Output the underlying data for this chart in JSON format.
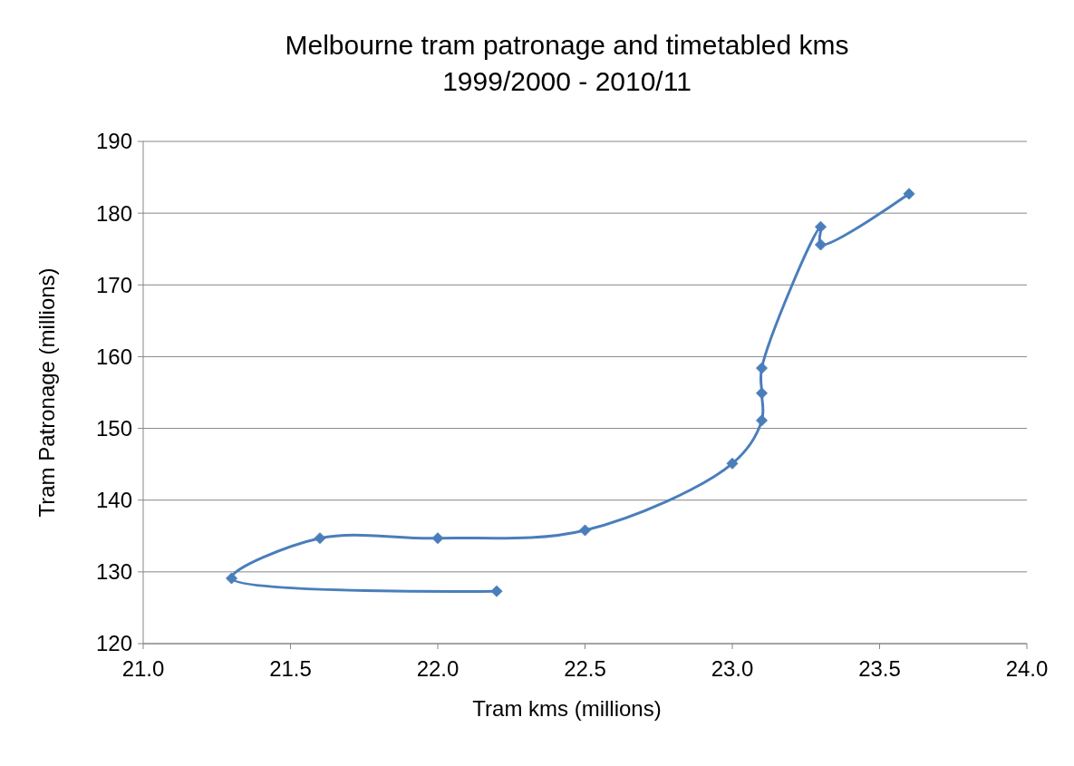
{
  "chart_data": {
    "type": "line",
    "title": "Melbourne tram patronage and timetabled kms",
    "subtitle": "1999/2000 - 2010/11",
    "xlabel": "Tram kms (millions)",
    "ylabel": "Tram Patronage  (millions)",
    "series": [
      {
        "color": "#4a7ebb",
        "x": [
          22.2,
          21.3,
          21.6,
          22.0,
          22.5,
          23.0,
          23.1,
          23.1,
          23.1,
          23.3,
          23.3,
          23.6
        ],
        "values": [
          127.3,
          129.1,
          134.7,
          134.7,
          135.8,
          145.1,
          151.1,
          154.9,
          158.4,
          178.1,
          175.6,
          182.7
        ]
      }
    ],
    "marker": "diamond",
    "line_style": "solid",
    "grid": "y",
    "xlim": [
      21,
      24
    ],
    "xticks": [
      {
        "value": 21,
        "label": "21.0"
      },
      {
        "value": 21.5,
        "label": "21.5"
      },
      {
        "value": 22,
        "label": "22.0"
      },
      {
        "value": 22.5,
        "label": "22.5"
      },
      {
        "value": 23,
        "label": "23.0"
      },
      {
        "value": 23.5,
        "label": "23.5"
      },
      {
        "value": 24,
        "label": "24.0"
      }
    ],
    "ylim": [
      120,
      190
    ],
    "yticks": [
      120,
      130,
      140,
      150,
      160,
      170,
      180,
      190
    ]
  }
}
